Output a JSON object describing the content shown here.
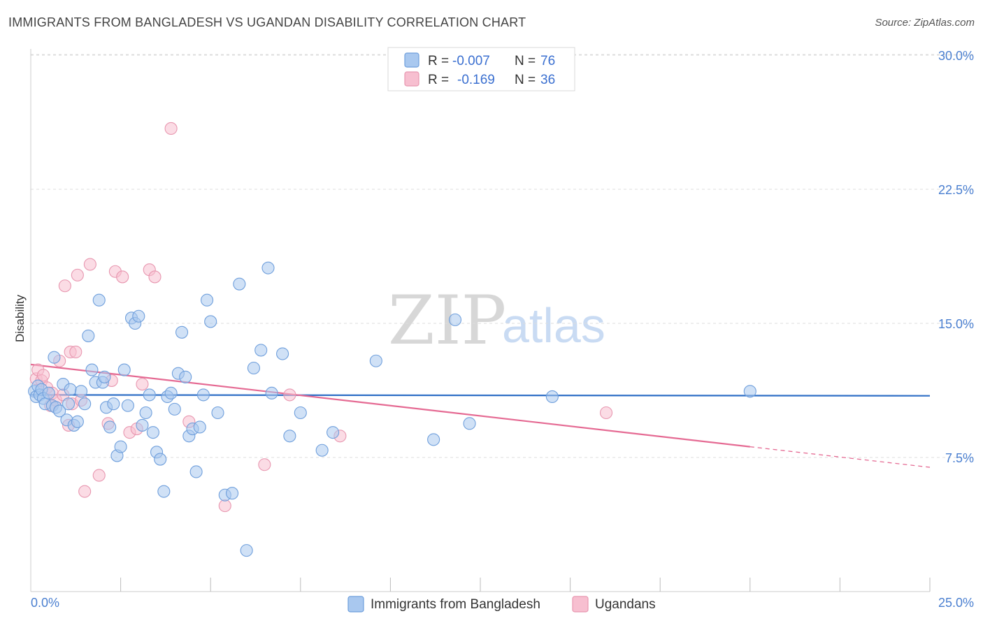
{
  "title": "IMMIGRANTS FROM BANGLADESH VS UGANDAN DISABILITY CORRELATION CHART",
  "source": "Source: ZipAtlas.com",
  "watermark": {
    "zip": "ZIP",
    "atlas": "atlas"
  },
  "colors": {
    "blue_fill": "#a9c8ef",
    "blue_stroke": "#6f9fdc",
    "blue_line": "#2f6fc6",
    "pink_fill": "#f7bfd0",
    "pink_stroke": "#e897b0",
    "pink_line": "#e56a93",
    "grid": "#dddddd",
    "axis_label": "#4a7fd0"
  },
  "legend": {
    "rows": [
      {
        "r_label": "R =",
        "r_value": "-0.007",
        "n_label": "N =",
        "n_value": "76"
      },
      {
        "r_label": "R =",
        "r_value": "-0.169",
        "n_label": "N =",
        "n_value": "36"
      }
    ]
  },
  "chart_data": {
    "type": "scatter",
    "title": "IMMIGRANTS FROM BANGLADESH VS UGANDAN DISABILITY CORRELATION CHART",
    "xlabel": "",
    "ylabel": "Disability",
    "xlim": [
      0,
      25
    ],
    "ylim": [
      0,
      31
    ],
    "x_tick_labels": [
      "0.0%",
      "25.0%"
    ],
    "y_ticks": [
      7.5,
      15.0,
      22.5,
      30.0
    ],
    "y_tick_labels": [
      "7.5%",
      "15.0%",
      "22.5%",
      "30.0%"
    ],
    "grid": "horizontal dashed",
    "legend_position": "top-center",
    "series": [
      {
        "name": "Immigrants from Bangladesh",
        "color": "#a9c8ef",
        "points": [
          [
            0.1,
            11.2
          ],
          [
            0.15,
            10.9
          ],
          [
            0.2,
            11.5
          ],
          [
            0.25,
            11.0
          ],
          [
            0.3,
            11.3
          ],
          [
            0.35,
            10.8
          ],
          [
            0.4,
            10.5
          ],
          [
            0.5,
            11.1
          ],
          [
            0.6,
            10.4
          ],
          [
            0.65,
            13.1
          ],
          [
            0.7,
            10.3
          ],
          [
            0.8,
            10.1
          ],
          [
            0.9,
            11.6
          ],
          [
            1.0,
            9.6
          ],
          [
            1.05,
            10.5
          ],
          [
            1.1,
            11.3
          ],
          [
            1.2,
            9.3
          ],
          [
            1.3,
            9.5
          ],
          [
            1.4,
            11.2
          ],
          [
            1.5,
            10.5
          ],
          [
            1.6,
            14.3
          ],
          [
            1.7,
            12.4
          ],
          [
            1.8,
            11.7
          ],
          [
            1.9,
            16.3
          ],
          [
            2.0,
            11.7
          ],
          [
            2.05,
            12.0
          ],
          [
            2.1,
            10.3
          ],
          [
            2.2,
            9.2
          ],
          [
            2.3,
            10.5
          ],
          [
            2.4,
            7.6
          ],
          [
            2.5,
            8.1
          ],
          [
            2.6,
            12.4
          ],
          [
            2.7,
            10.4
          ],
          [
            2.8,
            15.3
          ],
          [
            2.9,
            15.0
          ],
          [
            3.0,
            15.4
          ],
          [
            3.1,
            9.3
          ],
          [
            3.2,
            10.0
          ],
          [
            3.3,
            11.0
          ],
          [
            3.4,
            8.9
          ],
          [
            3.5,
            7.8
          ],
          [
            3.6,
            7.4
          ],
          [
            3.7,
            5.6
          ],
          [
            3.8,
            10.9
          ],
          [
            3.9,
            11.1
          ],
          [
            4.0,
            10.2
          ],
          [
            4.1,
            12.2
          ],
          [
            4.2,
            14.5
          ],
          [
            4.3,
            12.0
          ],
          [
            4.4,
            8.7
          ],
          [
            4.5,
            9.1
          ],
          [
            4.6,
            6.7
          ],
          [
            4.7,
            9.2
          ],
          [
            4.8,
            11.0
          ],
          [
            4.9,
            16.3
          ],
          [
            5.0,
            15.1
          ],
          [
            5.2,
            10.0
          ],
          [
            5.4,
            5.4
          ],
          [
            5.6,
            5.5
          ],
          [
            5.8,
            17.2
          ],
          [
            6.0,
            2.3
          ],
          [
            6.2,
            12.5
          ],
          [
            6.4,
            13.5
          ],
          [
            6.6,
            18.1
          ],
          [
            6.7,
            11.1
          ],
          [
            7.0,
            13.3
          ],
          [
            7.2,
            8.7
          ],
          [
            7.5,
            10.0
          ],
          [
            8.1,
            7.9
          ],
          [
            8.4,
            8.9
          ],
          [
            9.6,
            12.9
          ],
          [
            11.2,
            8.5
          ],
          [
            11.8,
            15.2
          ],
          [
            12.2,
            9.4
          ],
          [
            14.5,
            10.9
          ],
          [
            20.0,
            11.2
          ]
        ]
      },
      {
        "name": "Ugandans",
        "color": "#f7bfd0",
        "points": [
          [
            0.15,
            11.9
          ],
          [
            0.2,
            12.4
          ],
          [
            0.3,
            11.8
          ],
          [
            0.35,
            12.1
          ],
          [
            0.45,
            11.4
          ],
          [
            0.55,
            10.4
          ],
          [
            0.6,
            11.1
          ],
          [
            0.7,
            10.7
          ],
          [
            0.8,
            12.9
          ],
          [
            0.9,
            11.0
          ],
          [
            0.95,
            17.1
          ],
          [
            1.05,
            9.3
          ],
          [
            1.1,
            13.4
          ],
          [
            1.15,
            10.5
          ],
          [
            1.25,
            13.4
          ],
          [
            1.3,
            17.7
          ],
          [
            1.4,
            10.7
          ],
          [
            1.5,
            5.6
          ],
          [
            1.65,
            18.3
          ],
          [
            1.9,
            6.5
          ],
          [
            2.15,
            9.4
          ],
          [
            2.25,
            11.8
          ],
          [
            2.35,
            17.9
          ],
          [
            2.55,
            17.6
          ],
          [
            2.75,
            8.9
          ],
          [
            2.95,
            9.1
          ],
          [
            3.1,
            11.6
          ],
          [
            3.3,
            18.0
          ],
          [
            3.45,
            17.6
          ],
          [
            3.9,
            25.9
          ],
          [
            4.4,
            9.5
          ],
          [
            5.4,
            4.8
          ],
          [
            6.5,
            7.1
          ],
          [
            7.2,
            11.0
          ],
          [
            8.6,
            8.7
          ],
          [
            16.0,
            10.0
          ]
        ]
      }
    ],
    "trendlines": [
      {
        "series": "Immigrants from Bangladesh",
        "x": [
          0,
          25
        ],
        "y": [
          11.0,
          10.95
        ]
      },
      {
        "series": "Ugandans",
        "x": [
          0,
          20
        ],
        "y": [
          12.7,
          8.1
        ],
        "extension_x": [
          20,
          25
        ],
        "extension_y": [
          8.1,
          6.95
        ]
      }
    ]
  }
}
